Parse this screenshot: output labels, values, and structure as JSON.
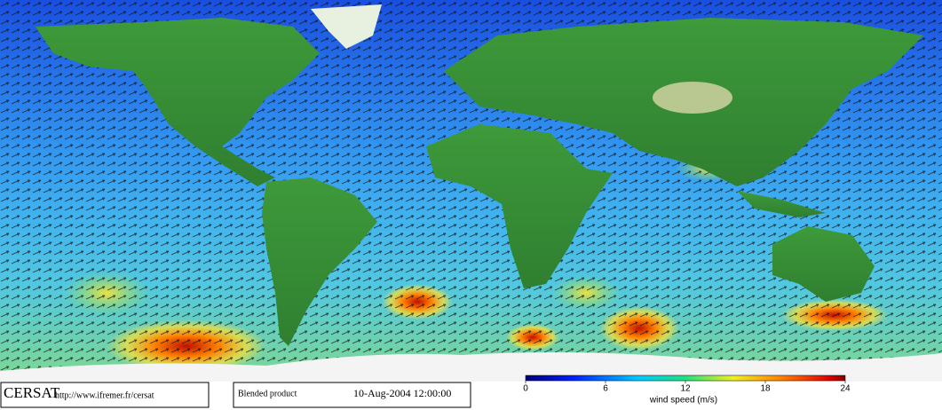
{
  "logo": "CERSAT",
  "url": "http://www.ifremer.fr/cersat",
  "product": "Blended product",
  "timestamp": "10-Aug-2004 12:00:00",
  "colorbar": {
    "label": "wind speed (m/s)",
    "lim": [
      0,
      24
    ],
    "ticks": [
      0,
      6,
      12,
      18,
      24
    ]
  }
}
